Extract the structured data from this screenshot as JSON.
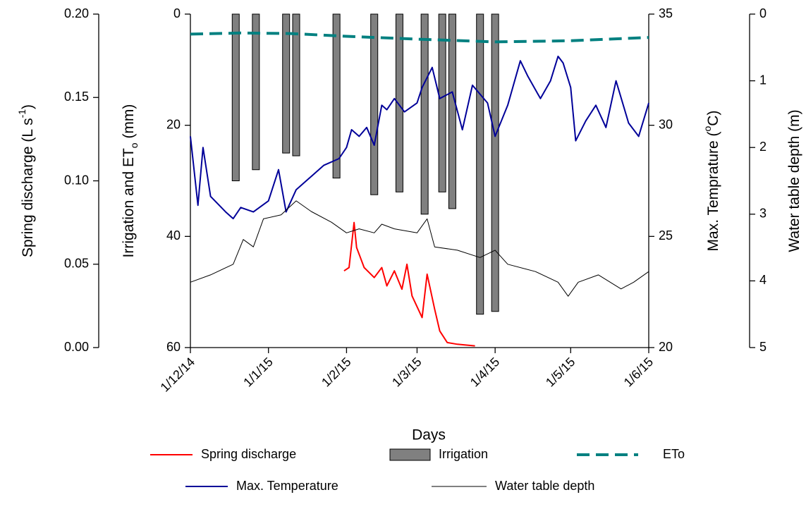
{
  "chart_data": {
    "type": "line",
    "xlabel": "Days",
    "xlim": [
      "2014-12-01",
      "2015-06-01"
    ],
    "xticks": [
      {
        "value": "2014-12-01",
        "label": "1/12/14"
      },
      {
        "value": "2015-01-01",
        "label": "1/1/15"
      },
      {
        "value": "2015-02-01",
        "label": "1/2/15"
      },
      {
        "value": "2015-03-01",
        "label": "1/3/15"
      },
      {
        "value": "2015-04-01",
        "label": "1/4/15"
      },
      {
        "value": "2015-05-01",
        "label": "1/5/15"
      },
      {
        "value": "2015-06-01",
        "label": "1/6/15"
      }
    ],
    "ylabel": [
      "Irrigation and ET",
      "o",
      " (mm)"
    ],
    "ylim": [
      60,
      0
    ],
    "yticks": [
      0,
      20,
      40,
      60
    ],
    "y2label": [
      "Max. Temprature (",
      "o",
      "C)"
    ],
    "y2lim": [
      20,
      35
    ],
    "y2ticks": [
      20,
      25,
      30,
      35
    ],
    "y3label": [
      "Spring discharge (L s",
      "-1",
      ")"
    ],
    "y3lim": [
      0,
      0.2
    ],
    "y3ticks": [
      {
        "value": 0,
        "label": "0.00"
      },
      0.05,
      {
        "value": 0.1,
        "label": "0.10"
      },
      0.15,
      {
        "value": 0.2,
        "label": "0.20"
      }
    ],
    "y4label": [
      "Water table depth (m)"
    ],
    "y4lim": [
      5,
      0
    ],
    "y4ticks": [
      0,
      1,
      2,
      3,
      4,
      5
    ],
    "series": [
      {
        "name": "Spring discharge",
        "type": "line",
        "axis": "y3",
        "color": "#ff0000",
        "x": [
          "2015-01-31",
          "2015-02-02",
          "2015-02-04",
          "2015-02-05",
          "2015-02-08",
          "2015-02-12",
          "2015-02-15",
          "2015-02-17",
          "2015-02-20",
          "2015-02-23",
          "2015-02-25",
          "2015-02-27",
          "2015-03-03",
          "2015-03-05",
          "2015-03-08",
          "2015-03-10",
          "2015-03-13",
          "2015-03-17",
          "2015-03-24"
        ],
        "values": [
          0.046,
          0.048,
          0.075,
          0.06,
          0.048,
          0.042,
          0.048,
          0.037,
          0.046,
          0.035,
          0.05,
          0.031,
          0.018,
          0.044,
          0.023,
          0.01,
          0.003,
          0.002,
          0.001
        ]
      },
      {
        "name": "Irrigation",
        "type": "bar",
        "axis": "y",
        "color": "#808080",
        "x": [
          "2014-12-19",
          "2014-12-27",
          "2015-01-08",
          "2015-01-12",
          "2015-01-28",
          "2015-02-12",
          "2015-02-22",
          "2015-03-04",
          "2015-03-11",
          "2015-03-15",
          "2015-03-26",
          "2015-04-01"
        ],
        "values": [
          30,
          28,
          25,
          25.5,
          29.5,
          32.5,
          32,
          36,
          32,
          35,
          54,
          53.5
        ]
      },
      {
        "name": "ETo",
        "type": "line",
        "axis": "y",
        "color": "#008080",
        "dashed": true,
        "x": [
          "2014-12-01",
          "2014-12-21",
          "2015-01-10",
          "2015-02-01",
          "2015-03-01",
          "2015-04-01",
          "2015-05-01",
          "2015-06-01"
        ],
        "values": [
          3.6,
          3.4,
          3.5,
          4.0,
          4.5,
          5.0,
          4.8,
          4.2
        ]
      },
      {
        "name": "Max. Temperature",
        "type": "line",
        "axis": "y2",
        "color": "#000099",
        "x": [
          "2014-12-01",
          "2014-12-04",
          "2014-12-06",
          "2014-12-09",
          "2014-12-15",
          "2014-12-18",
          "2014-12-21",
          "2014-12-26",
          "2015-01-01",
          "2015-01-05",
          "2015-01-08",
          "2015-01-12",
          "2015-01-18",
          "2015-01-23",
          "2015-01-29",
          "2015-02-01",
          "2015-02-03",
          "2015-02-06",
          "2015-02-09",
          "2015-02-12",
          "2015-02-15",
          "2015-02-17",
          "2015-02-20",
          "2015-02-24",
          "2015-03-01",
          "2015-03-03",
          "2015-03-07",
          "2015-03-10",
          "2015-03-15",
          "2015-03-19",
          "2015-03-23",
          "2015-03-29",
          "2015-04-01",
          "2015-04-06",
          "2015-04-11",
          "2015-04-14",
          "2015-04-19",
          "2015-04-23",
          "2015-04-26",
          "2015-04-28",
          "2015-05-01",
          "2015-05-03",
          "2015-05-07",
          "2015-05-11",
          "2015-05-15",
          "2015-05-19",
          "2015-05-24",
          "2015-05-28",
          "2015-06-01"
        ],
        "values": [
          29.5,
          26.4,
          29.0,
          26.8,
          26.1,
          25.8,
          26.3,
          26.1,
          26.6,
          28.0,
          26.1,
          27.1,
          27.7,
          28.2,
          28.5,
          29.0,
          29.8,
          29.5,
          29.9,
          29.1,
          30.9,
          30.7,
          31.2,
          30.6,
          31.0,
          31.7,
          32.6,
          31.2,
          31.5,
          29.8,
          31.8,
          31.0,
          29.5,
          30.9,
          32.9,
          32.2,
          31.2,
          32.0,
          33.1,
          32.8,
          31.7,
          29.3,
          30.2,
          30.9,
          29.9,
          32.0,
          30.1,
          29.5,
          31.0
        ]
      },
      {
        "name": "Water table depth",
        "type": "line",
        "axis": "y4",
        "color": "#000000",
        "thin": true,
        "x": [
          "2014-12-01",
          "2014-12-09",
          "2014-12-18",
          "2014-12-22",
          "2014-12-26",
          "2014-12-30",
          "2015-01-06",
          "2015-01-12",
          "2015-01-18",
          "2015-01-26",
          "2015-02-01",
          "2015-02-06",
          "2015-02-12",
          "2015-02-15",
          "2015-02-20",
          "2015-03-01",
          "2015-03-05",
          "2015-03-08",
          "2015-03-17",
          "2015-03-26",
          "2015-04-01",
          "2015-04-06",
          "2015-04-17",
          "2015-04-26",
          "2015-04-30",
          "2015-05-04",
          "2015-05-12",
          "2015-05-21",
          "2015-05-26",
          "2015-06-01"
        ],
        "values": [
          4.02,
          3.91,
          3.75,
          3.38,
          3.49,
          3.07,
          3.01,
          2.8,
          2.96,
          3.12,
          3.28,
          3.22,
          3.28,
          3.15,
          3.22,
          3.28,
          3.07,
          3.49,
          3.54,
          3.65,
          3.54,
          3.75,
          3.86,
          4.02,
          4.23,
          4.02,
          3.91,
          4.12,
          4.02,
          3.86
        ]
      }
    ]
  }
}
